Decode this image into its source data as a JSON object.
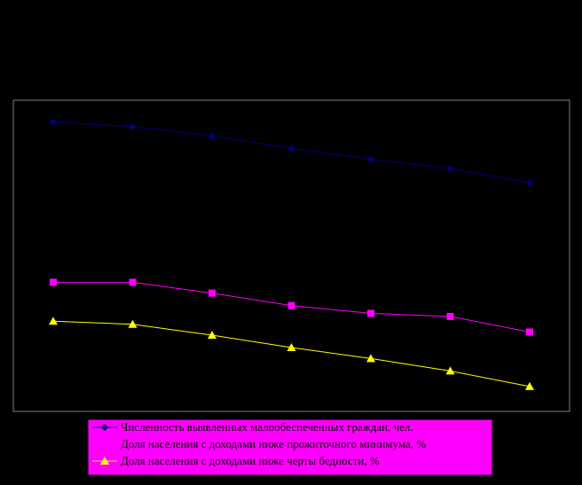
{
  "chart_data": {
    "type": "line",
    "title": "",
    "xlabel": "",
    "ylabel": "",
    "x": [
      1,
      2,
      3,
      4,
      5,
      6,
      7
    ],
    "ylim": [
      0,
      100
    ],
    "background": "#000000",
    "plot_border_color": "#808080",
    "legend": {
      "placement": "bottom",
      "background": "#FF00FF"
    },
    "series": [
      {
        "name": "Численность выявленных малообеспеченных граждан, чел.",
        "color": "#000080",
        "marker": "diamond",
        "values": [
          93,
          91.5,
          88.5,
          84.5,
          81,
          78,
          73.5
        ]
      },
      {
        "name": "Доля населения с доходами ниже прожиточного минимума, %",
        "color": "#FF00FF",
        "marker": "square",
        "values": [
          41.5,
          41.5,
          38,
          34,
          31.5,
          30.5,
          25.5
        ]
      },
      {
        "name": "Доля населения с доходами ниже черты бедности, %",
        "color": "#FFFF00",
        "marker": "triangle",
        "values": [
          29,
          28,
          24.5,
          20.5,
          17,
          13,
          8
        ]
      }
    ]
  }
}
